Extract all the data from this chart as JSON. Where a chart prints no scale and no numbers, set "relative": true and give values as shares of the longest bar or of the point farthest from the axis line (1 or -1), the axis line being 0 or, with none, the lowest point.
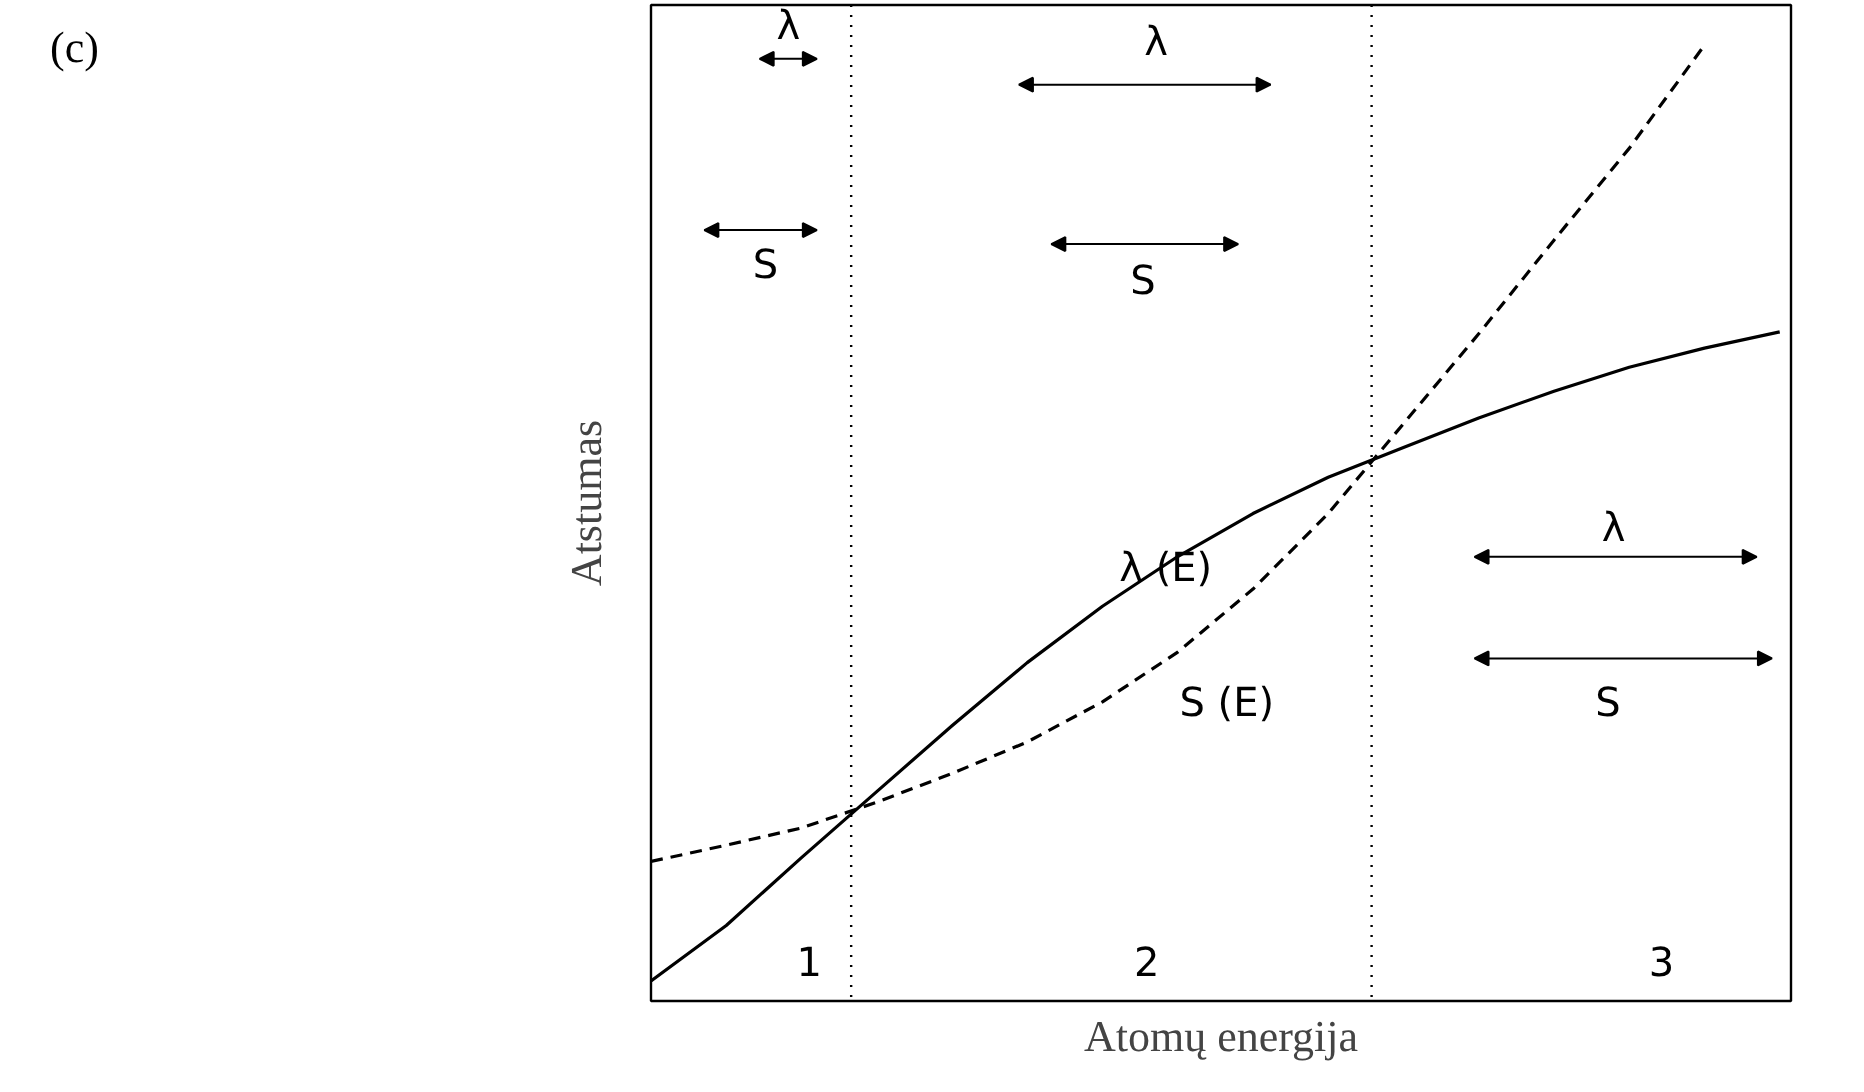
{
  "chart_data": {
    "type": "line",
    "title": "(c)",
    "xlabel": "Atomų energija",
    "ylabel": "Atstumas",
    "relative": true,
    "categories": [
      null,
      null,
      null,
      null,
      null,
      null,
      null,
      null,
      null,
      null,
      null,
      null,
      null,
      null,
      null,
      null
    ],
    "series": [
      {
        "name": "λ (E)",
        "color": "#000000",
        "line_style": "solid",
        "values": [
          0.021,
          0.079,
          0.15,
          0.219,
          0.288,
          0.354,
          0.413,
          0.465,
          0.51,
          0.548,
          0.579,
          0.61,
          0.638,
          0.663,
          0.683,
          0.7
        ]
      },
      {
        "name": "S (E)",
        "color": "#000000",
        "line_style": "dashed",
        "values": [
          0.146,
          0.163,
          0.181,
          0.208,
          0.238,
          0.271,
          0.313,
          0.365,
          0.431,
          0.51,
          0.604,
          0.698,
          0.796,
          0.892,
          1.0,
          null
        ]
      }
    ],
    "annotations": [
      "1",
      "2",
      "3",
      "λ",
      "S",
      "λ",
      "S",
      "λ",
      "S"
    ]
  }
}
